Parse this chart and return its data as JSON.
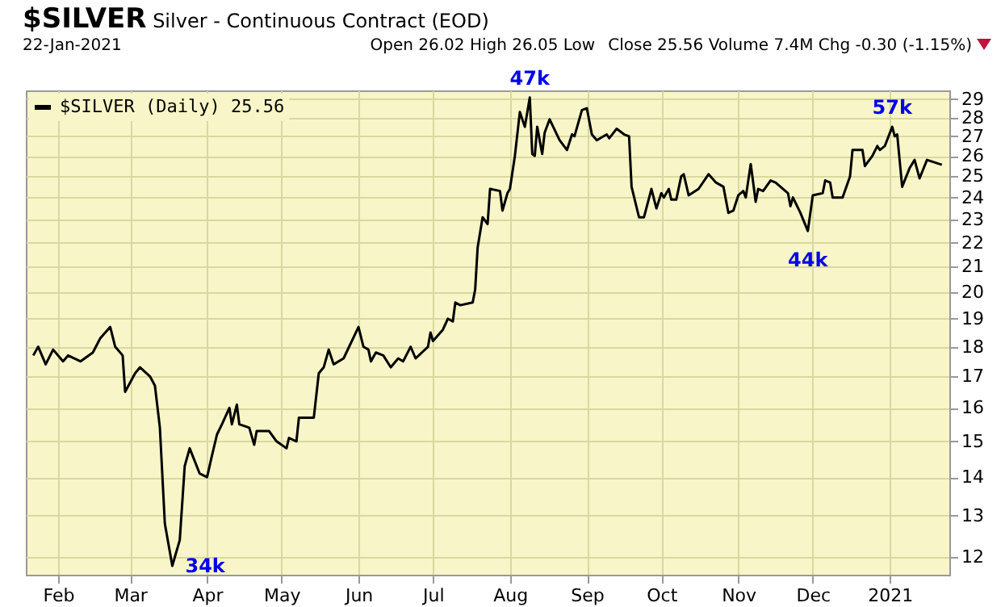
{
  "chart_data": {
    "type": "line",
    "title": "$SILVER Silver - Continuous Contract (EOD)",
    "subtitle": "22-Jan-2021",
    "annotations": [
      "Open 26.02  High 26.05  Low",
      "Close 25.56  Volume 7.4M  Chg -0.30 (-1.15%)",
      {
        "text": "34k",
        "x": "2020-03-18",
        "y": 11.8
      },
      {
        "text": "47k",
        "x": "2020-08-09",
        "y": 29.1
      },
      {
        "text": "44k",
        "x": "2020-11-29",
        "y": 22.5
      },
      {
        "text": "57k",
        "x": "2021-01-02",
        "y": 27.5
      }
    ],
    "x": [
      "2020-01-22",
      "2020-01-24",
      "2020-01-27",
      "2020-01-30",
      "2020-02-03",
      "2020-02-05",
      "2020-02-10",
      "2020-02-15",
      "2020-02-18",
      "2020-02-22",
      "2020-02-24",
      "2020-02-27",
      "2020-02-28",
      "2020-03-03",
      "2020-03-05",
      "2020-03-09",
      "2020-03-11",
      "2020-03-13",
      "2020-03-15",
      "2020-03-18",
      "2020-03-21",
      "2020-03-23",
      "2020-03-25",
      "2020-03-29",
      "2020-04-01",
      "2020-04-03",
      "2020-04-05",
      "2020-04-07",
      "2020-04-10",
      "2020-04-11",
      "2020-04-13",
      "2020-04-14",
      "2020-04-18",
      "2020-04-20",
      "2020-04-21",
      "2020-04-26",
      "2020-04-29",
      "2020-05-03",
      "2020-05-04",
      "2020-05-07",
      "2020-05-08",
      "2020-05-14",
      "2020-05-16",
      "2020-05-18",
      "2020-05-20",
      "2020-05-22",
      "2020-05-26",
      "2020-06-01",
      "2020-06-03",
      "2020-06-05",
      "2020-06-06",
      "2020-06-08",
      "2020-06-11",
      "2020-06-14",
      "2020-06-17",
      "2020-06-19",
      "2020-06-22",
      "2020-06-24",
      "2020-06-29",
      "2020-06-30",
      "2020-07-01",
      "2020-07-05",
      "2020-07-07",
      "2020-07-09",
      "2020-07-10",
      "2020-07-12",
      "2020-07-17",
      "2020-07-18",
      "2020-07-19",
      "2020-07-21",
      "2020-07-23",
      "2020-07-24",
      "2020-07-28",
      "2020-07-29",
      "2020-07-31",
      "2020-08-01",
      "2020-08-03",
      "2020-08-05",
      "2020-08-07",
      "2020-08-09",
      "2020-08-10",
      "2020-08-11",
      "2020-08-12",
      "2020-08-14",
      "2020-08-15",
      "2020-08-17",
      "2020-08-21",
      "2020-08-24",
      "2020-08-26",
      "2020-08-27",
      "2020-08-30",
      "2020-09-01",
      "2020-09-03",
      "2020-09-05",
      "2020-09-09",
      "2020-09-10",
      "2020-09-13",
      "2020-09-16",
      "2020-09-18",
      "2020-09-19",
      "2020-09-22",
      "2020-09-24",
      "2020-09-27",
      "2020-09-29",
      "2020-10-01",
      "2020-10-02",
      "2020-10-04",
      "2020-10-05",
      "2020-10-07",
      "2020-10-09",
      "2020-10-10",
      "2020-10-12",
      "2020-10-16",
      "2020-10-20",
      "2020-10-23",
      "2020-10-26",
      "2020-10-28",
      "2020-10-30",
      "2020-11-01",
      "2020-11-03",
      "2020-11-04",
      "2020-11-06",
      "2020-11-08",
      "2020-11-09",
      "2020-11-11",
      "2020-11-14",
      "2020-11-16",
      "2020-11-21",
      "2020-11-22",
      "2020-11-23",
      "2020-11-26",
      "2020-11-29",
      "2020-12-01",
      "2020-12-05",
      "2020-12-06",
      "2020-12-08",
      "2020-12-09",
      "2020-12-13",
      "2020-12-16",
      "2020-12-17",
      "2020-12-21",
      "2020-12-22",
      "2020-12-25",
      "2020-12-27",
      "2020-12-28",
      "2020-12-30",
      "2021-01-02",
      "2021-01-03",
      "2021-01-04",
      "2021-01-06",
      "2021-01-09",
      "2021-01-11",
      "2021-01-13",
      "2021-01-16",
      "2021-01-22"
    ],
    "series": [
      {
        "name": "$SILVER (Daily) 25.56",
        "color": "#000000",
        "values": [
          17.7,
          18.0,
          17.4,
          17.9,
          17.5,
          17.7,
          17.5,
          17.8,
          18.3,
          18.7,
          18.0,
          17.7,
          16.5,
          17.1,
          17.3,
          17.0,
          16.7,
          15.4,
          12.8,
          11.8,
          12.4,
          14.3,
          14.8,
          14.1,
          14.0,
          14.6,
          15.2,
          15.5,
          16.0,
          15.5,
          16.1,
          15.5,
          15.4,
          14.9,
          15.3,
          15.3,
          15.0,
          14.8,
          15.1,
          15.0,
          15.7,
          15.7,
          17.1,
          17.3,
          17.9,
          17.4,
          17.6,
          18.7,
          18.0,
          17.9,
          17.5,
          17.8,
          17.7,
          17.3,
          17.6,
          17.5,
          18.0,
          17.6,
          18.0,
          18.5,
          18.2,
          18.6,
          19.0,
          18.9,
          19.6,
          19.5,
          19.6,
          20.1,
          21.8,
          23.1,
          22.8,
          24.4,
          24.3,
          23.4,
          24.2,
          24.4,
          26.0,
          28.3,
          27.5,
          29.1,
          26.1,
          26.0,
          27.5,
          26.1,
          27.2,
          27.9,
          26.8,
          26.3,
          27.1,
          27.0,
          28.4,
          28.5,
          27.1,
          26.8,
          27.1,
          26.9,
          27.4,
          27.1,
          27.0,
          24.5,
          23.1,
          23.1,
          24.4,
          23.5,
          24.2,
          24.0,
          24.4,
          23.9,
          23.9,
          25.0,
          25.1,
          24.1,
          24.4,
          25.1,
          24.7,
          24.5,
          23.3,
          23.4,
          24.1,
          24.3,
          24.0,
          25.6,
          23.8,
          24.4,
          24.3,
          24.8,
          24.7,
          24.2,
          23.6,
          24.0,
          23.3,
          22.5,
          24.1,
          24.2,
          24.8,
          24.7,
          24.0,
          24.0,
          25.0,
          26.3,
          26.3,
          25.5,
          26.0,
          26.5,
          26.3,
          26.5,
          27.5,
          27.0,
          27.1,
          24.5,
          25.4,
          25.8,
          24.9,
          25.8,
          25.56
        ]
      }
    ],
    "xlim": [
      "2020-01-19",
      "2021-01-25"
    ],
    "xticks": [
      {
        "value": "2020-02-01",
        "label": "Feb"
      },
      {
        "value": "2020-03-01",
        "label": "Mar"
      },
      {
        "value": "2020-04-01",
        "label": "Apr"
      },
      {
        "value": "2020-05-01",
        "label": "May"
      },
      {
        "value": "2020-06-01",
        "label": "Jun"
      },
      {
        "value": "2020-07-01",
        "label": "Jul"
      },
      {
        "value": "2020-08-01",
        "label": "Aug"
      },
      {
        "value": "2020-09-01",
        "label": "Sep"
      },
      {
        "value": "2020-10-01",
        "label": "Oct"
      },
      {
        "value": "2020-11-01",
        "label": "Nov"
      },
      {
        "value": "2020-12-01",
        "label": "Dec"
      },
      {
        "value": "2021-01-01",
        "label": "2021"
      }
    ],
    "ylim": [
      11.6,
      29.5
    ],
    "yticks": [
      12,
      13,
      14,
      15,
      16,
      17,
      18,
      19,
      20,
      21,
      22,
      23,
      24,
      25,
      26,
      27,
      28,
      29
    ],
    "log": true,
    "grid": true,
    "legend": "top left"
  }
}
